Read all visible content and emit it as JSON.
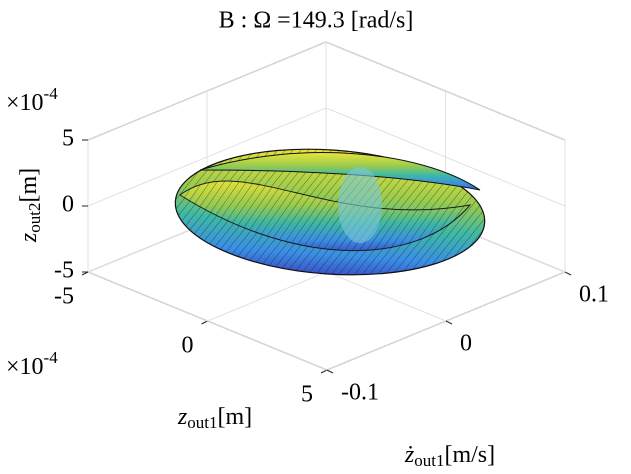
{
  "chart_data": {
    "type": "surface3d",
    "title": "B : Ω =149.3 [rad/s]",
    "xlabel": {
      "symbol": "z",
      "subscript": "out1",
      "unit": "[m]"
    },
    "ylabel": {
      "symbol": "ż",
      "subscript": "out1",
      "unit": "[m/s]"
    },
    "zlabel": {
      "symbol": "z",
      "subscript": "out2",
      "unit": "[m]"
    },
    "xlim": [
      -5,
      5
    ],
    "xticks": [
      -5,
      0,
      5
    ],
    "xexponent": {
      "base": "×10",
      "power": "-4"
    },
    "ylim": [
      -0.1,
      0.1
    ],
    "yticks": [
      -0.1,
      0,
      0.1
    ],
    "zlim": [
      -5,
      5
    ],
    "zticks": [
      -5,
      0,
      5
    ],
    "zexponent": {
      "base": "×10",
      "power": "-4"
    },
    "grid": true
  }
}
